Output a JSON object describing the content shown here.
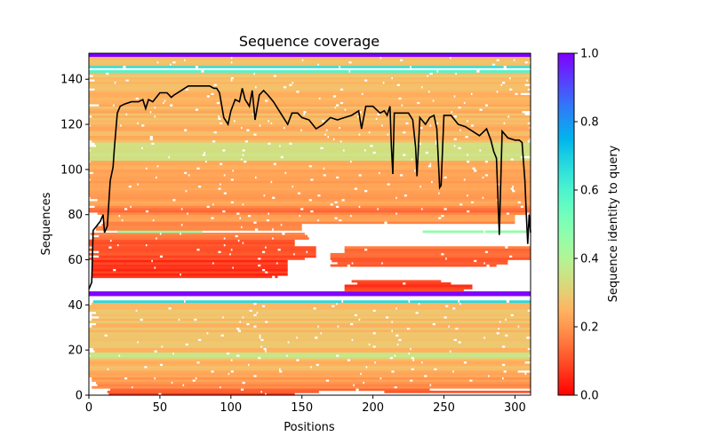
{
  "chart_data": {
    "type": "heatmap",
    "title": "Sequence coverage",
    "xlabel": "Positions",
    "ylabel": "Sequences",
    "xlim": [
      0,
      311
    ],
    "ylim": [
      0,
      151.5
    ],
    "xticks": [
      0,
      50,
      100,
      150,
      200,
      250,
      300
    ],
    "yticks": [
      0,
      20,
      40,
      60,
      80,
      100,
      120,
      140
    ],
    "colorbar": {
      "label": "Sequence identity to query",
      "range": [
        0,
        1
      ],
      "ticks": [
        "0.0",
        "0.2",
        "0.4",
        "0.6",
        "0.8",
        "1.0"
      ],
      "colormap": "rainbow_r"
    },
    "bands_note": "each band: [row_start, row_end, identity, pos_start, pos_end]",
    "bands": [
      [
        0,
        1,
        0.1,
        14,
        145
      ],
      [
        1,
        2,
        0.12,
        13,
        162
      ],
      [
        1,
        2,
        0.1,
        203,
        311
      ],
      [
        2,
        3,
        0.15,
        15,
        240
      ],
      [
        3,
        8,
        0.2,
        2,
        311
      ],
      [
        8,
        16,
        0.25,
        0,
        311
      ],
      [
        16,
        19,
        0.34,
        0,
        311
      ],
      [
        19,
        41,
        0.27,
        0,
        311
      ],
      [
        41,
        42,
        0.7,
        3,
        311
      ],
      [
        44,
        46,
        1.0,
        0,
        311
      ],
      [
        46,
        49,
        0.08,
        180,
        270
      ],
      [
        49,
        51,
        0.07,
        185,
        255
      ],
      [
        52,
        60,
        0.06,
        2,
        140
      ],
      [
        60,
        66,
        0.1,
        0,
        160
      ],
      [
        57,
        60,
        0.1,
        170,
        295
      ],
      [
        60,
        63,
        0.12,
        170,
        311
      ],
      [
        63,
        66,
        0.14,
        180,
        311
      ],
      [
        66,
        69,
        0.1,
        0,
        145
      ],
      [
        69,
        72,
        0.15,
        0,
        155
      ],
      [
        72,
        73,
        0.45,
        13,
        80
      ],
      [
        72,
        73,
        0.45,
        232,
        308
      ],
      [
        73,
        76,
        0.17,
        5,
        150
      ],
      [
        76,
        80,
        0.2,
        10,
        300
      ],
      [
        80,
        84,
        0.16,
        0,
        311
      ],
      [
        84,
        104,
        0.22,
        0,
        311
      ],
      [
        104,
        112,
        0.35,
        0,
        311
      ],
      [
        112,
        140,
        0.25,
        0,
        311
      ],
      [
        140,
        143,
        0.27,
        0,
        311
      ],
      [
        143,
        144,
        0.62,
        0,
        311
      ],
      [
        145,
        146,
        0.68,
        0,
        311
      ],
      [
        146,
        150,
        0.27,
        0,
        311
      ],
      [
        150,
        151.5,
        0.98,
        0,
        311
      ]
    ],
    "series": [
      {
        "name": "coverage",
        "color": "#000000",
        "points": [
          [
            0,
            47
          ],
          [
            2,
            50
          ],
          [
            3,
            73
          ],
          [
            8,
            77
          ],
          [
            10,
            80
          ],
          [
            11,
            72
          ],
          [
            13,
            75
          ],
          [
            15,
            95
          ],
          [
            17,
            101
          ],
          [
            18,
            110
          ],
          [
            20,
            125
          ],
          [
            22,
            128
          ],
          [
            25,
            129
          ],
          [
            30,
            130
          ],
          [
            35,
            130
          ],
          [
            38,
            131
          ],
          [
            40,
            127
          ],
          [
            42,
            131
          ],
          [
            45,
            130
          ],
          [
            50,
            134
          ],
          [
            55,
            134
          ],
          [
            58,
            132
          ],
          [
            60,
            133
          ],
          [
            65,
            135
          ],
          [
            70,
            137
          ],
          [
            85,
            137
          ],
          [
            88,
            136
          ],
          [
            90,
            136
          ],
          [
            92,
            134
          ],
          [
            95,
            123
          ],
          [
            98,
            120
          ],
          [
            100,
            126
          ],
          [
            103,
            131
          ],
          [
            106,
            130
          ],
          [
            108,
            136
          ],
          [
            110,
            131
          ],
          [
            113,
            128
          ],
          [
            115,
            135
          ],
          [
            117,
            122
          ],
          [
            120,
            133
          ],
          [
            123,
            135
          ],
          [
            126,
            133
          ],
          [
            130,
            130
          ],
          [
            135,
            125
          ],
          [
            140,
            120
          ],
          [
            143,
            125
          ],
          [
            147,
            125
          ],
          [
            150,
            123
          ],
          [
            155,
            122
          ],
          [
            160,
            118
          ],
          [
            165,
            120
          ],
          [
            170,
            123
          ],
          [
            175,
            122
          ],
          [
            180,
            123
          ],
          [
            185,
            124
          ],
          [
            190,
            126
          ],
          [
            192,
            118
          ],
          [
            195,
            128
          ],
          [
            200,
            128
          ],
          [
            205,
            125
          ],
          [
            208,
            126
          ],
          [
            210,
            124
          ],
          [
            212,
            128
          ],
          [
            213,
            110
          ],
          [
            214,
            98
          ],
          [
            215,
            125
          ],
          [
            220,
            125
          ],
          [
            225,
            125
          ],
          [
            228,
            122
          ],
          [
            230,
            110
          ],
          [
            231,
            97
          ],
          [
            233,
            123
          ],
          [
            237,
            120
          ],
          [
            240,
            123
          ],
          [
            243,
            124
          ],
          [
            245,
            118
          ],
          [
            247,
            92
          ],
          [
            248,
            93
          ],
          [
            250,
            124
          ],
          [
            255,
            124
          ],
          [
            260,
            120
          ],
          [
            265,
            119
          ],
          [
            270,
            117
          ],
          [
            275,
            115
          ],
          [
            280,
            118
          ],
          [
            283,
            113
          ],
          [
            285,
            108
          ],
          [
            287,
            105
          ],
          [
            289,
            71
          ],
          [
            291,
            117
          ],
          [
            295,
            114
          ],
          [
            300,
            113
          ],
          [
            303,
            113
          ],
          [
            305,
            112
          ],
          [
            307,
            95
          ],
          [
            308,
            80
          ],
          [
            309,
            67
          ],
          [
            310,
            80
          ],
          [
            311,
            72
          ]
        ]
      }
    ]
  }
}
